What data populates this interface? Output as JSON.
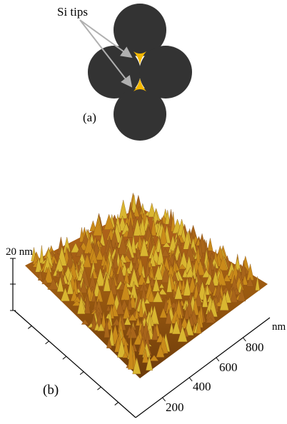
{
  "panel_a": {
    "label": "Si tips",
    "caption": "(a)"
  },
  "panel_b": {
    "z_scale": "20 nm",
    "axis_unit": "nm",
    "axis_ticks": [
      "200",
      "400",
      "600",
      "800"
    ],
    "caption": "(b)"
  }
}
